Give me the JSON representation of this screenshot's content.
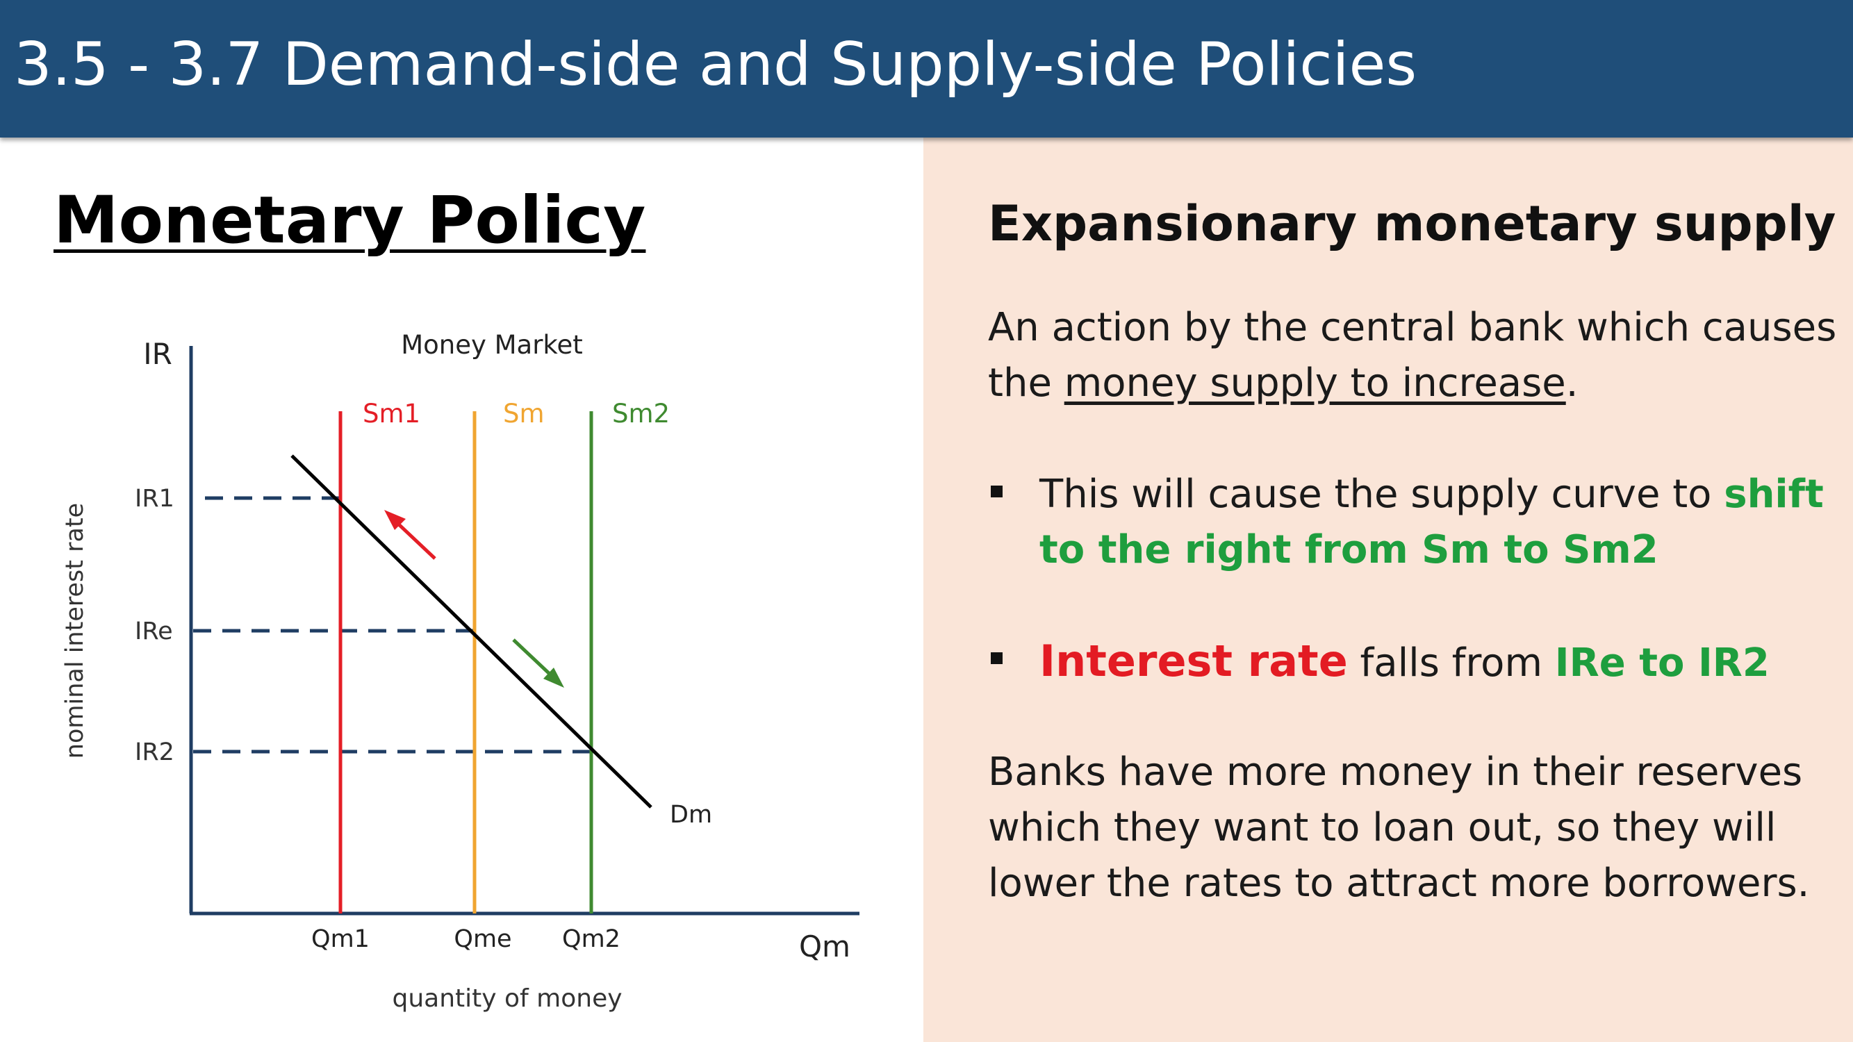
{
  "header": {
    "title": "3.5 - 3.7 Demand-side and Supply-side Policies"
  },
  "left": {
    "section_title": "Monetary Policy"
  },
  "diagram": {
    "title": "Money Market",
    "y_axis_label": "IR",
    "y_axis_title": "nominal interest rate",
    "x_axis_label": "Qm",
    "x_axis_title": "quantity of money",
    "supply_curves": [
      {
        "label": "Sm1",
        "color": "#e41e26"
      },
      {
        "label": "Sm",
        "color": "#f0a531"
      },
      {
        "label": "Sm2",
        "color": "#3f8a30"
      }
    ],
    "demand_label": "Dm",
    "y_ticks": [
      "IR1",
      "IRe",
      "IR2"
    ],
    "x_ticks": [
      "Qm1",
      "Qme",
      "Qm2"
    ],
    "arrow_colors": {
      "up": "#e41e26",
      "down": "#3f8a30"
    }
  },
  "right": {
    "heading": "Expansionary monetary supply",
    "definition": {
      "line1": "An action by the central bank which causes",
      "line2_prefix": "the ",
      "line2_underlined": "money supply to increase",
      "line2_suffix": "."
    },
    "bullet1": {
      "line1_text": "This will cause the supply curve to ",
      "line1_green": "shift",
      "line2_green": "to the right from Sm to Sm2"
    },
    "bullet2": {
      "red": "Interest rate",
      "text": " falls from ",
      "green": "IRe to IR2"
    },
    "closing": {
      "line1": "Banks have more money in their reserves",
      "line2": "which they want to loan out, so they will",
      "line3": "lower the rates to attract more borrowers."
    }
  }
}
